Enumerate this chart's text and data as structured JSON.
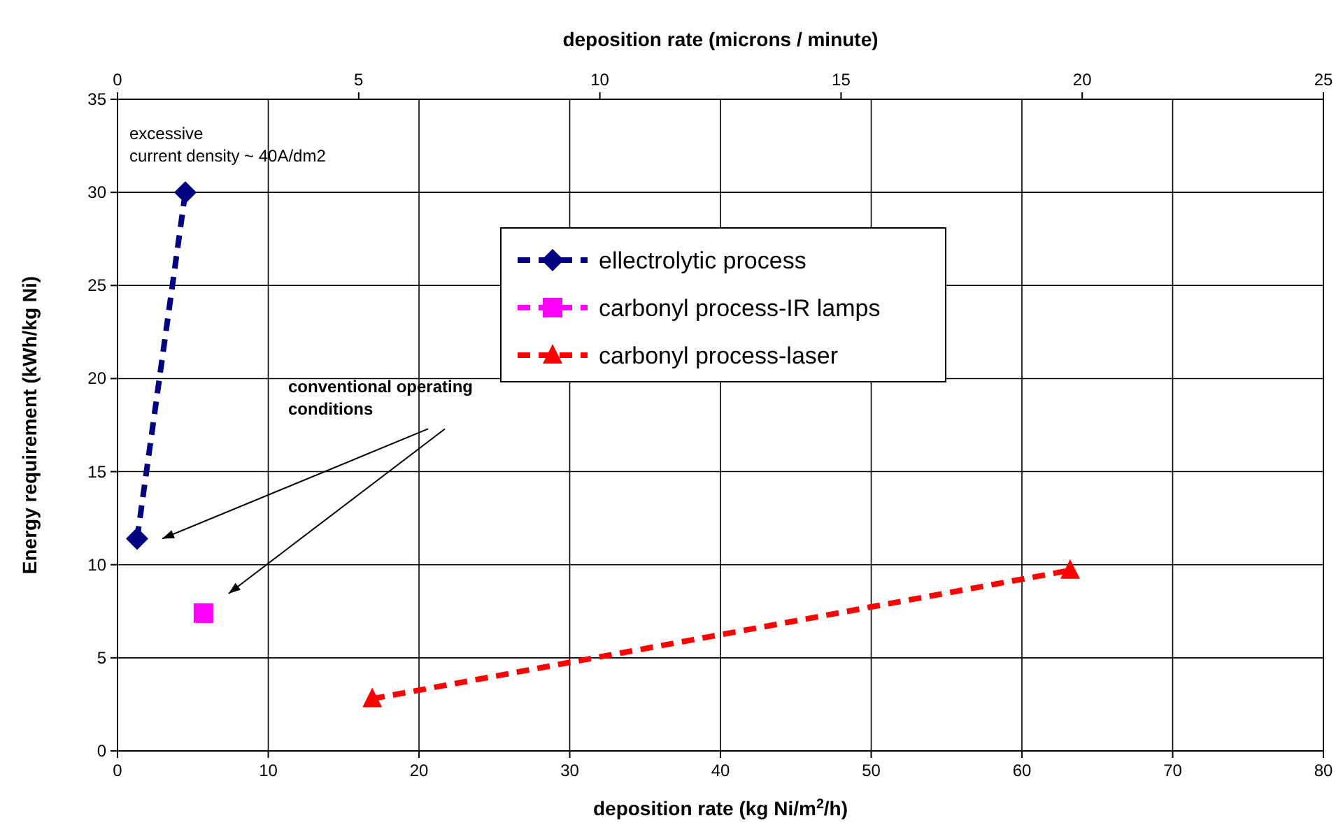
{
  "chart_data": {
    "type": "line",
    "xlabel": "deposition rate (kg Ni/m$^{2}$/h)",
    "x2label": "deposition rate (microns / minute)",
    "ylabel": "Energy requirement (kWh/kg Ni)",
    "xlim": [
      0,
      80
    ],
    "xticks": [
      0,
      10,
      20,
      30,
      40,
      50,
      60,
      70,
      80
    ],
    "x2lim": [
      0,
      25
    ],
    "x2ticks": [
      0,
      5,
      10,
      15,
      20,
      25
    ],
    "ylim": [
      0,
      35
    ],
    "yticks": [
      0,
      5,
      10,
      15,
      20,
      25,
      30,
      35
    ],
    "grid": true,
    "legend": "top right",
    "line_style": "dashed",
    "series": [
      {
        "name": "ellectrolytic process",
        "color": "#000080",
        "marker": "diamond",
        "x": [
          1.3,
          4.5
        ],
        "values": [
          11.4,
          30
        ]
      },
      {
        "name": "carbonyl process-IR lamps",
        "color": "#ff00ff",
        "marker": "square",
        "x": [
          5.7
        ],
        "values": [
          7.4
        ]
      },
      {
        "name": "carbonyl process-laser",
        "color": "#ff0000",
        "marker": "triangle",
        "x": [
          16.9,
          63.2
        ],
        "values": [
          2.8,
          9.7
        ]
      }
    ],
    "annotations": [
      {
        "text": "excessive\ncurrent density ~ 40A/dm2",
        "x": 4.5,
        "y": 30
      },
      "conventional operating\nconditions"
    ]
  }
}
